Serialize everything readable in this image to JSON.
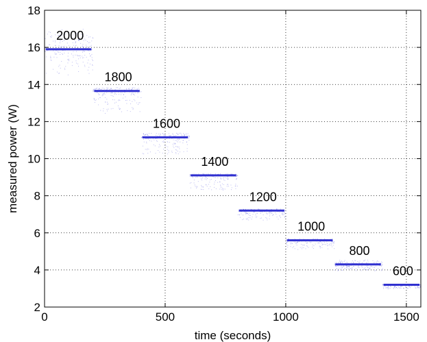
{
  "chart_data": {
    "type": "scatter",
    "title": "",
    "xlabel": "time (seconds)",
    "ylabel": "measured power (W)",
    "xlim": [
      0,
      1560
    ],
    "ylim": [
      2,
      18
    ],
    "xticks": [
      0,
      500,
      1000,
      1500
    ],
    "yticks": [
      2,
      4,
      6,
      8,
      10,
      12,
      14,
      16,
      18
    ],
    "grid": true,
    "colors": {
      "series": "#3030d0",
      "noise": "#6a6ae0"
    },
    "steps": [
      {
        "label": "2000",
        "t_start": 0,
        "t_end": 200,
        "power": 15.9,
        "spread_up": 1.1,
        "spread_down": 1.4
      },
      {
        "label": "1800",
        "t_start": 200,
        "t_end": 400,
        "power": 13.65,
        "spread_up": 0.2,
        "spread_down": 1.2
      },
      {
        "label": "1600",
        "t_start": 400,
        "t_end": 600,
        "power": 11.15,
        "spread_up": 0.25,
        "spread_down": 0.9
      },
      {
        "label": "1400",
        "t_start": 600,
        "t_end": 800,
        "power": 9.1,
        "spread_up": 0.1,
        "spread_down": 0.8
      },
      {
        "label": "1200",
        "t_start": 800,
        "t_end": 1000,
        "power": 7.2,
        "spread_up": 0.1,
        "spread_down": 0.5
      },
      {
        "label": "1000",
        "t_start": 1000,
        "t_end": 1200,
        "power": 5.6,
        "spread_up": 0.1,
        "spread_down": 0.5
      },
      {
        "label": "800",
        "t_start": 1200,
        "t_end": 1400,
        "power": 4.3,
        "spread_up": 0.25,
        "spread_down": 0.35
      },
      {
        "label": "600",
        "t_start": 1400,
        "t_end": 1560,
        "power": 3.2,
        "spread_up": 0.05,
        "spread_down": 0.2
      }
    ]
  }
}
